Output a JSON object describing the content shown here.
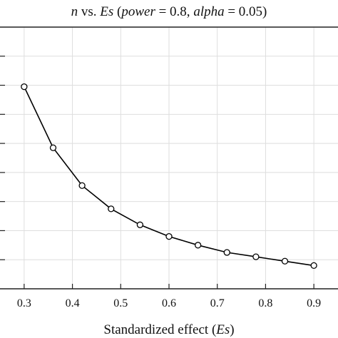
{
  "chart_data": {
    "type": "line",
    "title_parts": [
      {
        "text": "n",
        "italic": true
      },
      {
        "text": " vs. ",
        "italic": false
      },
      {
        "text": "Es",
        "italic": true
      },
      {
        "text": " (",
        "italic": false
      },
      {
        "text": "power",
        "italic": true
      },
      {
        "text": " = 0.8, ",
        "italic": false
      },
      {
        "text": "alpha",
        "italic": true
      },
      {
        "text": " = 0.05)",
        "italic": false
      }
    ],
    "xlabel_parts": [
      {
        "text": "Standardized effect (",
        "italic": false
      },
      {
        "text": "Es",
        "italic": true
      },
      {
        "text": ")",
        "italic": false
      }
    ],
    "xlim": [
      0.25,
      0.95
    ],
    "xticks": [
      0.3,
      0.4,
      0.5,
      0.6,
      0.7,
      0.8,
      0.9
    ],
    "xtick_labels": [
      "0.3",
      "0.4",
      "0.5",
      "0.6",
      "0.7",
      "0.8",
      "0.9"
    ],
    "ylim": [
      0,
      180
    ],
    "yticks": [
      20,
      40,
      60,
      80,
      100,
      120,
      140,
      160
    ],
    "grid": true,
    "series": [
      {
        "x": [
          0.3,
          0.36,
          0.42,
          0.48,
          0.54,
          0.6,
          0.66,
          0.72,
          0.78,
          0.84,
          0.9
        ],
        "y": [
          139,
          97,
          71,
          55,
          44,
          36,
          30,
          25,
          22,
          19,
          16
        ],
        "marker": "circle-open",
        "color": "#000000"
      }
    ]
  }
}
